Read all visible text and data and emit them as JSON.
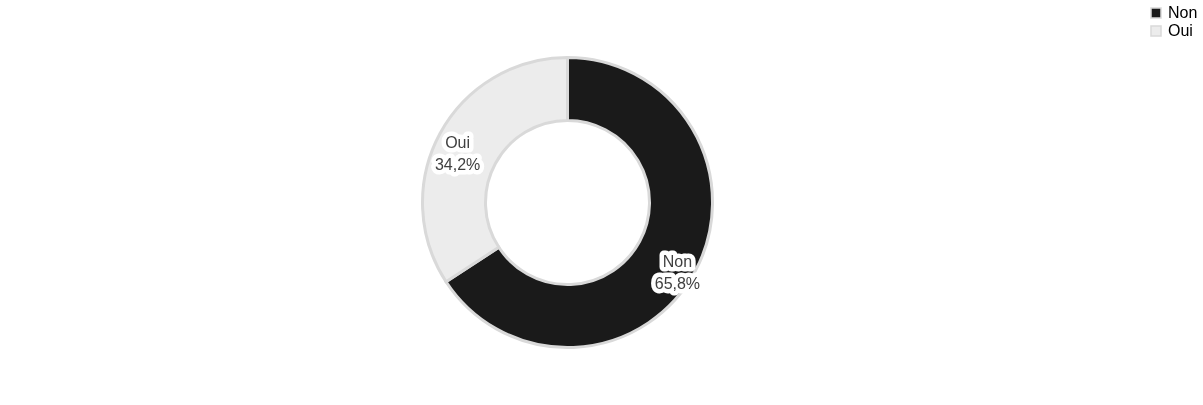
{
  "chart_data": {
    "type": "donut",
    "categories": [
      "Non",
      "Oui"
    ],
    "values": [
      65.8,
      34.2
    ],
    "colors": [
      "#1a1a1a",
      "#ececec"
    ],
    "value_labels": [
      "65,8%",
      "34,2%"
    ],
    "legend": "right"
  }
}
